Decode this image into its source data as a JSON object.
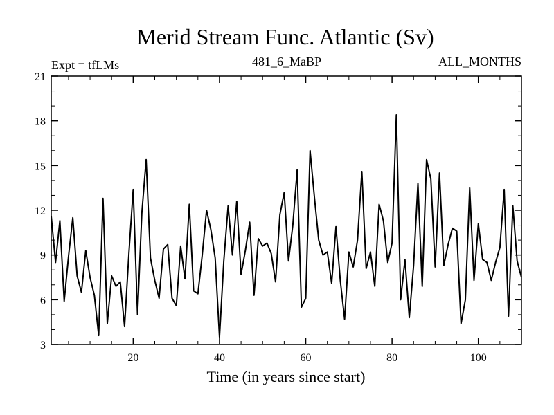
{
  "chart_data": {
    "type": "line",
    "title": "Merid Stream Func. Atlantic (Sv)",
    "subtitle_left": "Expt = tfLMs",
    "subtitle_center": "481_6_MaBP",
    "subtitle_right": "ALL_MONTHS",
    "xlabel": "Time (in years since start)",
    "ylabel": "",
    "xlim": [
      1,
      110
    ],
    "ylim": [
      3,
      21
    ],
    "x_ticks": [
      20,
      40,
      60,
      80,
      100
    ],
    "y_ticks": [
      3,
      6,
      9,
      12,
      15,
      18,
      21
    ],
    "x_tick_labels": [
      "20",
      "40",
      "60",
      "80",
      "100"
    ],
    "y_tick_labels": [
      "3",
      "6",
      "9",
      "12",
      "15",
      "18",
      "21"
    ],
    "grid": false,
    "line_color": "#000000",
    "series": [
      {
        "name": "tfLMs",
        "x": [
          1,
          2,
          3,
          4,
          5,
          6,
          7,
          8,
          9,
          10,
          11,
          12,
          13,
          14,
          15,
          16,
          17,
          18,
          19,
          20,
          21,
          22,
          23,
          24,
          25,
          26,
          27,
          28,
          29,
          30,
          31,
          32,
          33,
          34,
          35,
          36,
          37,
          38,
          39,
          40,
          41,
          42,
          43,
          44,
          45,
          46,
          47,
          48,
          49,
          50,
          51,
          52,
          53,
          54,
          55,
          56,
          57,
          58,
          59,
          60,
          61,
          62,
          63,
          64,
          65,
          66,
          67,
          68,
          69,
          70,
          71,
          72,
          73,
          74,
          75,
          76,
          77,
          78,
          79,
          80,
          81,
          82,
          83,
          84,
          85,
          86,
          87,
          88,
          89,
          90,
          91,
          92,
          93,
          94,
          95,
          96,
          97,
          98,
          99,
          100,
          101,
          102,
          103,
          104,
          105,
          106,
          107,
          108,
          109,
          110
        ],
        "values": [
          11.6,
          8.5,
          11.3,
          5.9,
          8.9,
          11.5,
          7.6,
          6.5,
          9.3,
          7.5,
          6.3,
          3.6,
          12.8,
          4.4,
          7.6,
          6.9,
          7.2,
          4.2,
          9.1,
          13.4,
          5.0,
          11.8,
          15.4,
          8.8,
          7.3,
          6.1,
          9.4,
          9.7,
          6.1,
          5.6,
          9.6,
          7.4,
          12.4,
          6.6,
          6.4,
          9.0,
          12.0,
          10.7,
          8.8,
          3.5,
          8.6,
          12.3,
          9.0,
          12.6,
          7.7,
          9.3,
          11.2,
          6.3,
          10.1,
          9.6,
          9.8,
          9.1,
          7.2,
          11.7,
          13.2,
          8.6,
          11.0,
          14.7,
          5.5,
          6.1,
          16.0,
          12.9,
          10.0,
          9.0,
          9.2,
          7.1,
          10.9,
          7.3,
          4.7,
          9.2,
          8.2,
          10.0,
          14.6,
          8.1,
          9.2,
          6.9,
          12.4,
          11.3,
          8.5,
          9.8,
          18.4,
          6.0,
          8.7,
          4.8,
          8.3,
          13.8,
          6.9,
          15.4,
          14.1,
          8.2,
          14.5,
          8.3,
          9.7,
          10.8,
          10.6,
          4.4,
          6.0,
          13.5,
          7.3,
          11.1,
          8.7,
          8.5,
          7.3,
          8.5,
          9.5,
          13.4,
          4.9,
          12.3,
          8.6,
          7.5
        ]
      }
    ]
  }
}
